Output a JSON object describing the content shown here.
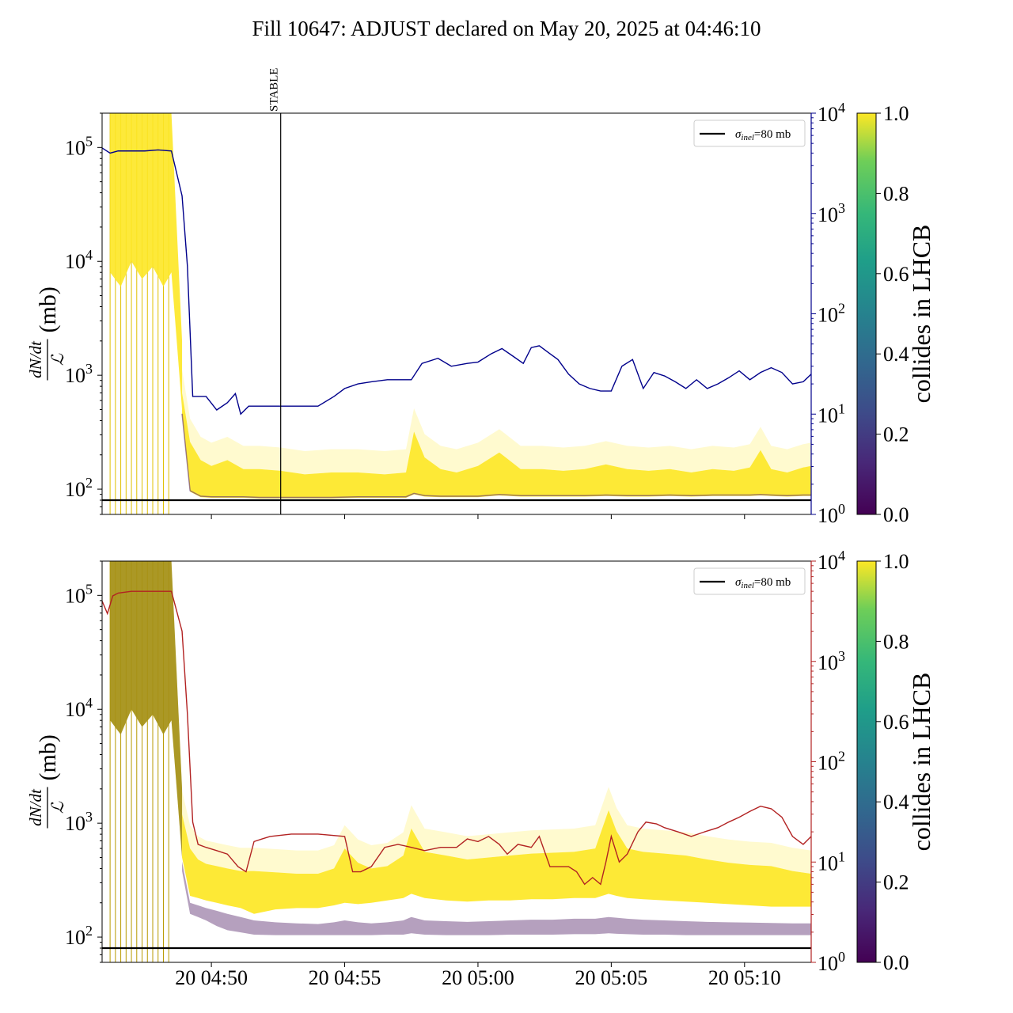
{
  "figure": {
    "title": "Fill 10647: ADJUST declared on May 20, 2025 at 04:46:10"
  },
  "colors": {
    "top_line": "#00008b",
    "bottom_line": "#b22222",
    "baseline": "#000000",
    "bunch_high": "#fde725",
    "bunch_low": "#5b2c6f"
  },
  "chart_data": [
    {
      "type": "line",
      "panel": "top",
      "ylabel_numerator": "dN/dt",
      "ylabel_denominator": "ℒ",
      "ylabel_unit": "(mb)",
      "yscale": "log",
      "ylim": [
        60,
        200000
      ],
      "ytick_values": [
        100,
        1000,
        10000,
        100000
      ],
      "ytick_exponents": [
        "2",
        "3",
        "4",
        "5"
      ],
      "y2scale": "log",
      "y2lim": [
        1,
        10000
      ],
      "y2tick_values": [
        1,
        10,
        100,
        1000,
        10000
      ],
      "y2tick_exponents": [
        "0",
        "1",
        "2",
        "3",
        "4"
      ],
      "y2color": "#00008b",
      "xlim_minutes": [
        45.9,
        72.5
      ],
      "xtick_minutes": [
        50,
        55,
        60,
        65,
        70
      ],
      "xtick_labels": [
        "20 04:50",
        "20 04:55",
        "20 05:00",
        "20 05:05",
        "20 05:10"
      ],
      "show_xtick_labels": false,
      "vline": {
        "x_minute": 52.6,
        "label": "STABLE"
      },
      "hline": {
        "y": 80,
        "label_sym": "σ",
        "label_sub": "inel",
        "label_rest": "=80 mb"
      },
      "legend_loc": "upper right",
      "colorbar": {
        "label": "collides in LHCB",
        "ticks": [
          "0.0",
          "0.2",
          "0.4",
          "0.6",
          "0.8",
          "1.0"
        ],
        "colormap": "viridis"
      },
      "line_series": {
        "x": [
          45.9,
          46.2,
          46.5,
          47,
          47.5,
          48,
          48.5,
          48.9,
          49.1,
          49.3,
          49.5,
          49.8,
          50.2,
          50.6,
          50.9,
          51.1,
          51.4,
          51.8,
          52.2,
          53,
          54,
          54.6,
          55,
          55.5,
          56,
          56.6,
          57.2,
          57.5,
          57.9,
          58.5,
          59,
          59.6,
          60,
          60.5,
          60.9,
          61.3,
          61.7,
          62,
          62.3,
          62.7,
          63,
          63.4,
          63.8,
          64.2,
          64.6,
          65,
          65.4,
          65.8,
          66.2,
          66.6,
          67,
          67.4,
          67.8,
          68.2,
          68.6,
          69,
          69.4,
          69.8,
          70.2,
          70.6,
          71,
          71.4,
          71.8,
          72.2,
          72.5
        ],
        "y": [
          4500,
          4000,
          4200,
          4200,
          4200,
          4300,
          4200,
          1500,
          300,
          15,
          15,
          15,
          11,
          13,
          16,
          10,
          12,
          12,
          12,
          12,
          12,
          15,
          18,
          20,
          21,
          22,
          22,
          22,
          32,
          36,
          30,
          32,
          33,
          40,
          45,
          38,
          32,
          46,
          48,
          40,
          35,
          25,
          20,
          18,
          17,
          17,
          30,
          35,
          18,
          26,
          24,
          21,
          18,
          22,
          18,
          20,
          23,
          27,
          22,
          26,
          29,
          26,
          20,
          21,
          25
        ]
      },
      "bunch_band": {
        "x": [
          48.9,
          49.2,
          49.6,
          50,
          50.6,
          51.2,
          51.8,
          52.6,
          53.5,
          54.5,
          55.5,
          56.5,
          57.3,
          57.6,
          58,
          58.6,
          59.2,
          60,
          60.8,
          61.6,
          62.4,
          63.2,
          64,
          64.8,
          65.6,
          66.4,
          67.2,
          68,
          68.8,
          69.6,
          70.2,
          70.6,
          71,
          71.6,
          72.2,
          72.5
        ],
        "upper": [
          700,
          260,
          180,
          160,
          180,
          150,
          150,
          145,
          135,
          140,
          140,
          135,
          140,
          320,
          190,
          150,
          140,
          160,
          210,
          150,
          150,
          145,
          150,
          165,
          150,
          145,
          150,
          140,
          150,
          145,
          155,
          220,
          150,
          140,
          155,
          160
        ],
        "lower": [
          450,
          95,
          85,
          84,
          84,
          84,
          83,
          83,
          83,
          83,
          84,
          84,
          84,
          90,
          86,
          85,
          85,
          85,
          88,
          86,
          86,
          86,
          86,
          87,
          86,
          86,
          87,
          86,
          87,
          87,
          87,
          88,
          87,
          86,
          87,
          87
        ]
      }
    },
    {
      "type": "line",
      "panel": "bottom",
      "ylabel_numerator": "dN/dt",
      "ylabel_denominator": "ℒ",
      "ylabel_unit": "(mb)",
      "yscale": "log",
      "ylim": [
        60,
        200000
      ],
      "ytick_values": [
        100,
        1000,
        10000,
        100000
      ],
      "ytick_exponents": [
        "2",
        "3",
        "4",
        "5"
      ],
      "y2scale": "log",
      "y2lim": [
        1,
        10000
      ],
      "y2tick_values": [
        1,
        10,
        100,
        1000,
        10000
      ],
      "y2tick_exponents": [
        "0",
        "1",
        "2",
        "3",
        "4"
      ],
      "y2color": "#b22222",
      "xlim_minutes": [
        45.9,
        72.5
      ],
      "xtick_minutes": [
        50,
        55,
        60,
        65,
        70
      ],
      "xtick_labels": [
        "20 04:50",
        "20 04:55",
        "20 05:00",
        "20 05:05",
        "20 05:10"
      ],
      "show_xtick_labels": true,
      "hline": {
        "y": 80,
        "label_sym": "σ",
        "label_sub": "inel",
        "label_rest": "=80 mb"
      },
      "legend_loc": "upper right",
      "colorbar": {
        "label": "collides in LHCB",
        "ticks": [
          "0.0",
          "0.2",
          "0.4",
          "0.6",
          "0.8",
          "1.0"
        ],
        "colormap": "viridis"
      },
      "line_series": {
        "x": [
          45.9,
          46.1,
          46.3,
          46.5,
          47,
          47.5,
          48,
          48.5,
          48.9,
          49.1,
          49.3,
          49.5,
          49.8,
          50.2,
          50.6,
          51,
          51.3,
          51.6,
          51.9,
          52.2,
          53,
          54,
          55,
          55.3,
          55.6,
          56,
          56.5,
          57,
          57.5,
          58,
          58.6,
          59.2,
          59.6,
          60,
          60.4,
          60.8,
          61.1,
          61.5,
          62,
          62.3,
          62.7,
          63,
          63.4,
          63.7,
          64,
          64.3,
          64.6,
          64.8,
          65,
          65.3,
          65.6,
          66,
          66.3,
          66.7,
          67,
          67.5,
          68,
          68.5,
          69,
          69.4,
          69.8,
          70.2,
          70.6,
          71,
          71.4,
          71.8,
          72.2,
          72.5
        ],
        "y": [
          4000,
          3000,
          4500,
          4800,
          5000,
          5000,
          5000,
          5000,
          2000,
          300,
          25,
          15,
          14,
          13,
          12,
          9,
          8,
          16,
          17,
          18,
          19,
          19,
          18,
          8,
          8,
          9,
          14,
          15,
          14,
          13,
          14,
          14,
          17,
          16,
          18,
          15,
          12,
          15,
          14,
          18,
          9,
          9,
          9,
          8,
          6,
          7,
          6,
          10,
          18,
          10,
          12,
          20,
          25,
          24,
          22,
          20,
          18,
          20,
          22,
          25,
          28,
          32,
          36,
          34,
          28,
          18,
          15,
          18
        ]
      },
      "bunch_band": {
        "x": [
          48.9,
          49.2,
          49.5,
          49.8,
          50.2,
          50.6,
          51.1,
          51.6,
          52.4,
          53.2,
          54,
          54.6,
          55,
          55.5,
          56,
          56.6,
          57.2,
          57.5,
          58,
          58.8,
          59.6,
          60.4,
          61.2,
          62,
          62.8,
          63.6,
          64.4,
          64.9,
          65.2,
          65.6,
          66.2,
          67,
          67.8,
          68.6,
          69.4,
          70.2,
          71,
          71.8,
          72.5
        ],
        "upper": [
          1200,
          600,
          480,
          440,
          420,
          400,
          380,
          380,
          370,
          360,
          360,
          400,
          600,
          450,
          400,
          420,
          520,
          900,
          560,
          520,
          480,
          500,
          520,
          540,
          550,
          560,
          600,
          1300,
          850,
          600,
          560,
          540,
          520,
          480,
          450,
          430,
          420,
          380,
          360
        ],
        "lower": [
          500,
          230,
          220,
          210,
          200,
          190,
          180,
          160,
          175,
          180,
          180,
          190,
          200,
          195,
          200,
          210,
          220,
          240,
          220,
          210,
          205,
          210,
          210,
          215,
          215,
          220,
          220,
          240,
          230,
          220,
          215,
          210,
          205,
          200,
          195,
          190,
          185,
          185,
          185
        ],
        "purple_upper": [
          460,
          200,
          190,
          180,
          170,
          160,
          150,
          140,
          135,
          132,
          130,
          135,
          140,
          135,
          132,
          135,
          140,
          150,
          140,
          138,
          136,
          138,
          140,
          142,
          142,
          145,
          145,
          150,
          148,
          145,
          142,
          140,
          138,
          136,
          135,
          134,
          133,
          132,
          132
        ],
        "purple_lower": [
          380,
          160,
          150,
          140,
          125,
          115,
          110,
          105,
          104,
          104,
          104,
          104,
          104,
          104,
          104,
          105,
          105,
          108,
          105,
          104,
          104,
          104,
          105,
          105,
          105,
          106,
          106,
          108,
          107,
          106,
          105,
          105,
          104,
          104,
          104,
          104,
          104,
          104,
          104
        ]
      }
    }
  ]
}
